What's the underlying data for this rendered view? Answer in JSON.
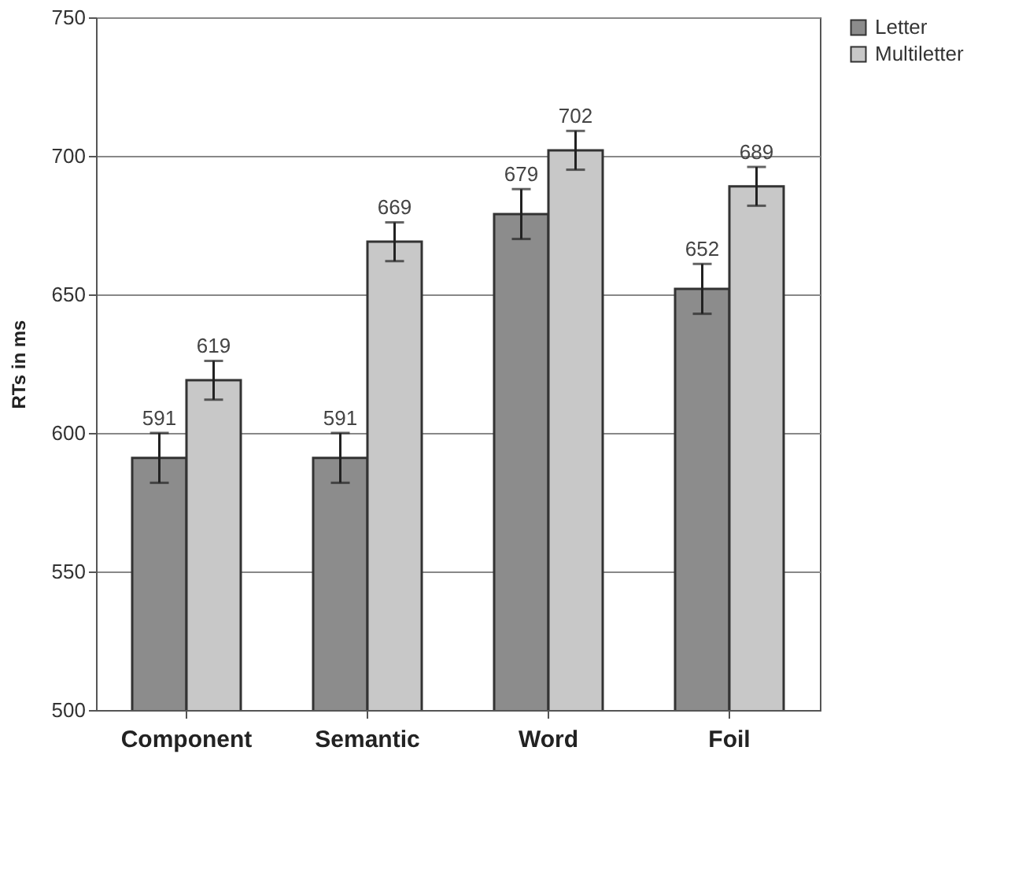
{
  "chart_data": {
    "type": "bar",
    "ylabel": "RTs in ms",
    "categories": [
      "Component",
      "Semantic",
      "Word",
      "Foil"
    ],
    "series": [
      {
        "name": "Letter",
        "color": "#8c8c8c",
        "values": [
          591,
          591,
          679,
          652
        ],
        "errors": [
          9,
          9,
          9,
          9
        ]
      },
      {
        "name": "Multiletter",
        "color": "#c8c8c8",
        "values": [
          619,
          669,
          702,
          689
        ],
        "errors": [
          7,
          7,
          7,
          7
        ]
      }
    ],
    "ylim": [
      500,
      750
    ],
    "yticks": [
      500,
      550,
      600,
      650,
      700,
      750
    ],
    "grid": "y",
    "legend": "right",
    "data_labels": true
  }
}
